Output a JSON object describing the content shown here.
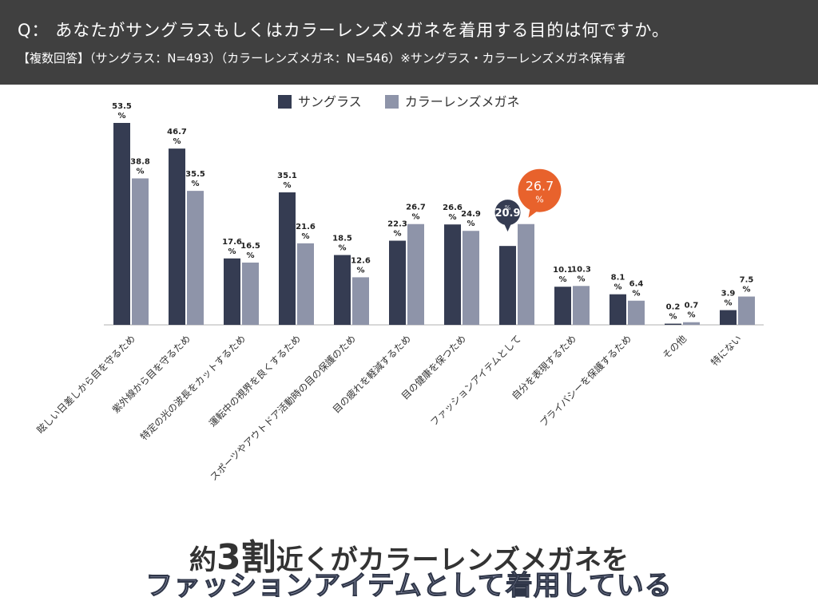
{
  "header": {
    "question": "Q： あなたがサングラスもしくはカラーレンズメガネを着用する目的は何ですか。",
    "subtitle": "【複数回答】（サングラス：N=493）（カラーレンズメガネ：N=546）※サングラス・カラーレンズメガネ保有者"
  },
  "colors": {
    "sunglasses": "#353c52",
    "color_lens": "#8e94a9",
    "highlight_orange": "#e8622c",
    "axis": "#cccccc"
  },
  "chart_data": {
    "type": "bar",
    "title": "",
    "xlabel": "",
    "ylabel": "",
    "ylim": [
      0,
      60
    ],
    "categories": [
      "眩しい日差しから目を守るため",
      "紫外線から目を守るため",
      "特定の光の波長をカットするため",
      "運転中の視界を良くするため",
      "スポーツやアウトドア活動時の目の保護のため",
      "目の疲れを軽減するため",
      "目の健康を保つため",
      "ファッションアイテムとして",
      "自分を表現するため",
      "プライバシーを保護するため",
      "その他",
      "特にない"
    ],
    "series": [
      {
        "name": "サングラス",
        "values": [
          53.5,
          46.7,
          17.6,
          35.1,
          18.5,
          22.3,
          26.6,
          20.9,
          10.1,
          8.1,
          0.2,
          3.9
        ]
      },
      {
        "name": "カラーレンズメガネ",
        "values": [
          38.8,
          35.5,
          16.5,
          21.6,
          12.6,
          26.7,
          24.9,
          26.7,
          10.3,
          6.4,
          0.7,
          7.5
        ]
      }
    ],
    "value_labels": {
      "sunglasses": [
        "53.5",
        "46.7",
        "17.6",
        "35.1",
        "18.5",
        "22.3",
        "26.6",
        "20.9",
        "10.1",
        "8.1",
        "0.2",
        "3.9"
      ],
      "color_lens": [
        "38.8",
        "35.5",
        "16.5",
        "21.6",
        "12.6",
        "26.7",
        "24.9",
        "26.7",
        "10.3",
        "6.4",
        "0.7",
        "7.5"
      ]
    },
    "percent_sign": "%",
    "highlight_index": 7
  },
  "bottom": {
    "line1_a": "約",
    "line1_b": "3割",
    "line1_c": "近くがカラーレンズメガネを",
    "line2": "ファッションアイテムとして着用している"
  }
}
